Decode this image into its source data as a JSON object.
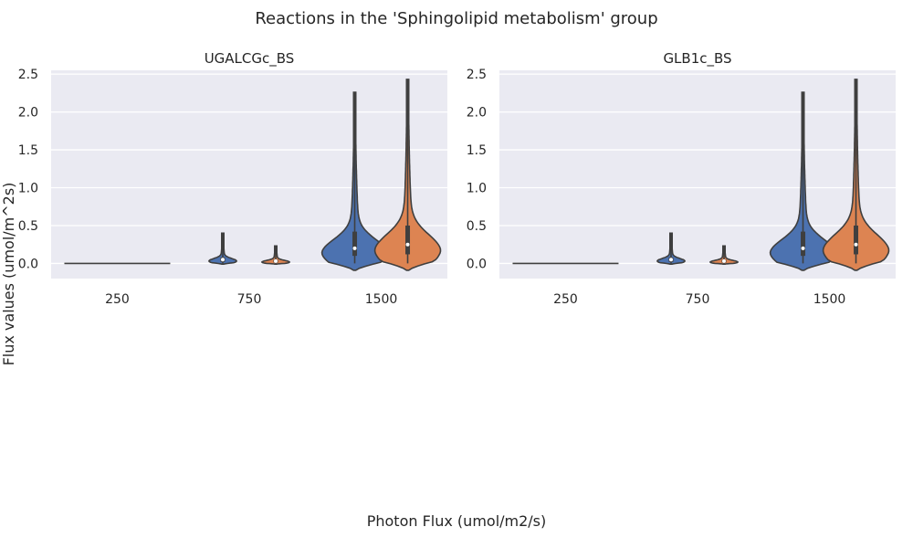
{
  "chart_data": {
    "type": "violin",
    "title": "Reactions in the 'Sphingolipid metabolism' group",
    "xlabel": "Photon Flux (umol/m2/s)",
    "ylabel": "Flux values (umol/m^2s)",
    "categories": [
      "250",
      "750",
      "1500"
    ],
    "ylim": [
      -0.2,
      2.55
    ],
    "yticks": [
      0.0,
      0.5,
      1.0,
      1.5,
      2.0,
      2.5
    ],
    "grid": true,
    "legend": "none",
    "series_colors": [
      "#4c72b0",
      "#dd8452"
    ],
    "panels": [
      {
        "title": "UGALCGc_BS",
        "violins": [
          {
            "category": "250",
            "series_index": 0,
            "min": 0.0,
            "max": 0.0,
            "q1": 0.0,
            "median": 0.0,
            "q3": 0.0,
            "tail_low": 0.0
          },
          {
            "category": "750",
            "series_index": 0,
            "min": 0.0,
            "max": 0.4,
            "q1": 0.02,
            "median": 0.05,
            "q3": 0.08,
            "tail_low": -0.01
          },
          {
            "category": "750",
            "series_index": 1,
            "min": 0.0,
            "max": 0.23,
            "q1": 0.01,
            "median": 0.03,
            "q3": 0.05,
            "tail_low": -0.01
          },
          {
            "category": "1500",
            "series_index": 0,
            "min": 0.0,
            "max": 2.26,
            "q1": 0.1,
            "median": 0.2,
            "q3": 0.42,
            "tail_low": -0.09
          },
          {
            "category": "1500",
            "series_index": 1,
            "min": 0.0,
            "max": 2.43,
            "q1": 0.12,
            "median": 0.25,
            "q3": 0.5,
            "tail_low": -0.09
          }
        ]
      },
      {
        "title": "GLB1c_BS",
        "violins": [
          {
            "category": "250",
            "series_index": 0,
            "min": 0.0,
            "max": 0.0,
            "q1": 0.0,
            "median": 0.0,
            "q3": 0.0,
            "tail_low": 0.0
          },
          {
            "category": "750",
            "series_index": 0,
            "min": 0.0,
            "max": 0.4,
            "q1": 0.02,
            "median": 0.05,
            "q3": 0.08,
            "tail_low": -0.01
          },
          {
            "category": "750",
            "series_index": 1,
            "min": 0.0,
            "max": 0.23,
            "q1": 0.01,
            "median": 0.03,
            "q3": 0.05,
            "tail_low": -0.01
          },
          {
            "category": "1500",
            "series_index": 0,
            "min": 0.0,
            "max": 2.26,
            "q1": 0.1,
            "median": 0.2,
            "q3": 0.42,
            "tail_low": -0.09
          },
          {
            "category": "1500",
            "series_index": 1,
            "min": 0.0,
            "max": 2.43,
            "q1": 0.12,
            "median": 0.25,
            "q3": 0.5,
            "tail_low": -0.09
          }
        ]
      }
    ]
  }
}
